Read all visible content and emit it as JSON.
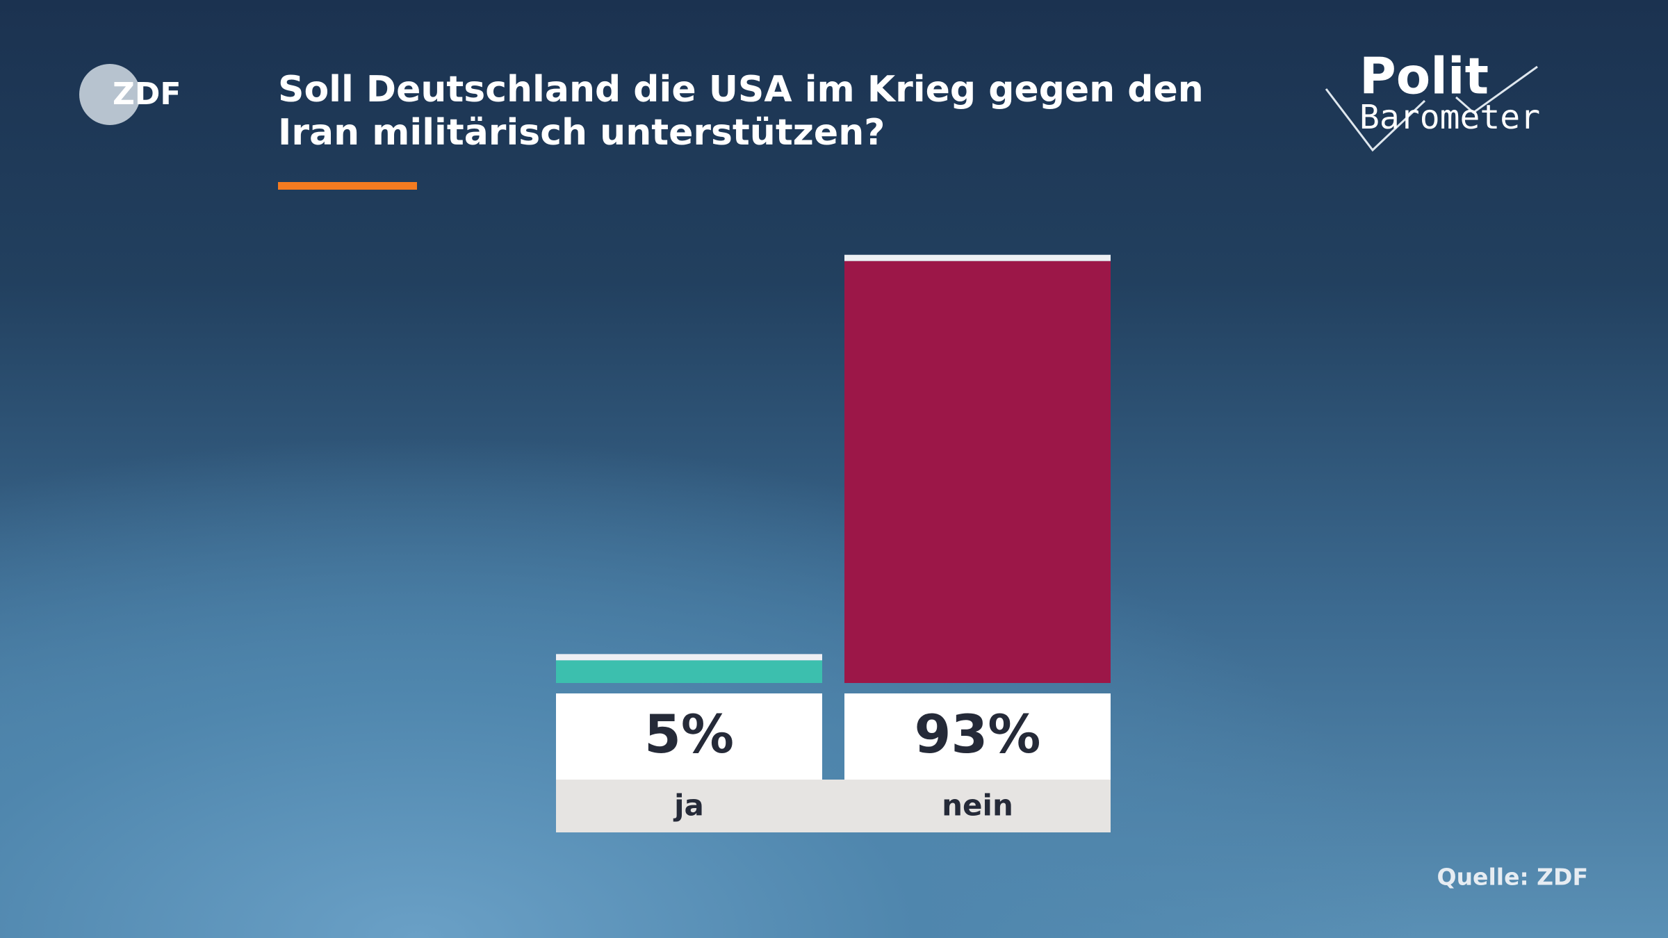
{
  "logo": "ZDF",
  "brand": {
    "line1": "Polit",
    "line2": "Barometer"
  },
  "chart_data": {
    "type": "bar",
    "title": "Soll Deutschland die USA im Krieg gegen den Iran militärisch unterstützen?",
    "categories": [
      "ja",
      "nein"
    ],
    "values": [
      5,
      93
    ],
    "value_labels": [
      "5%",
      "93%"
    ],
    "colors": [
      "#3cbfae",
      "#9c1748"
    ],
    "source": "Quelle: ZDF"
  }
}
